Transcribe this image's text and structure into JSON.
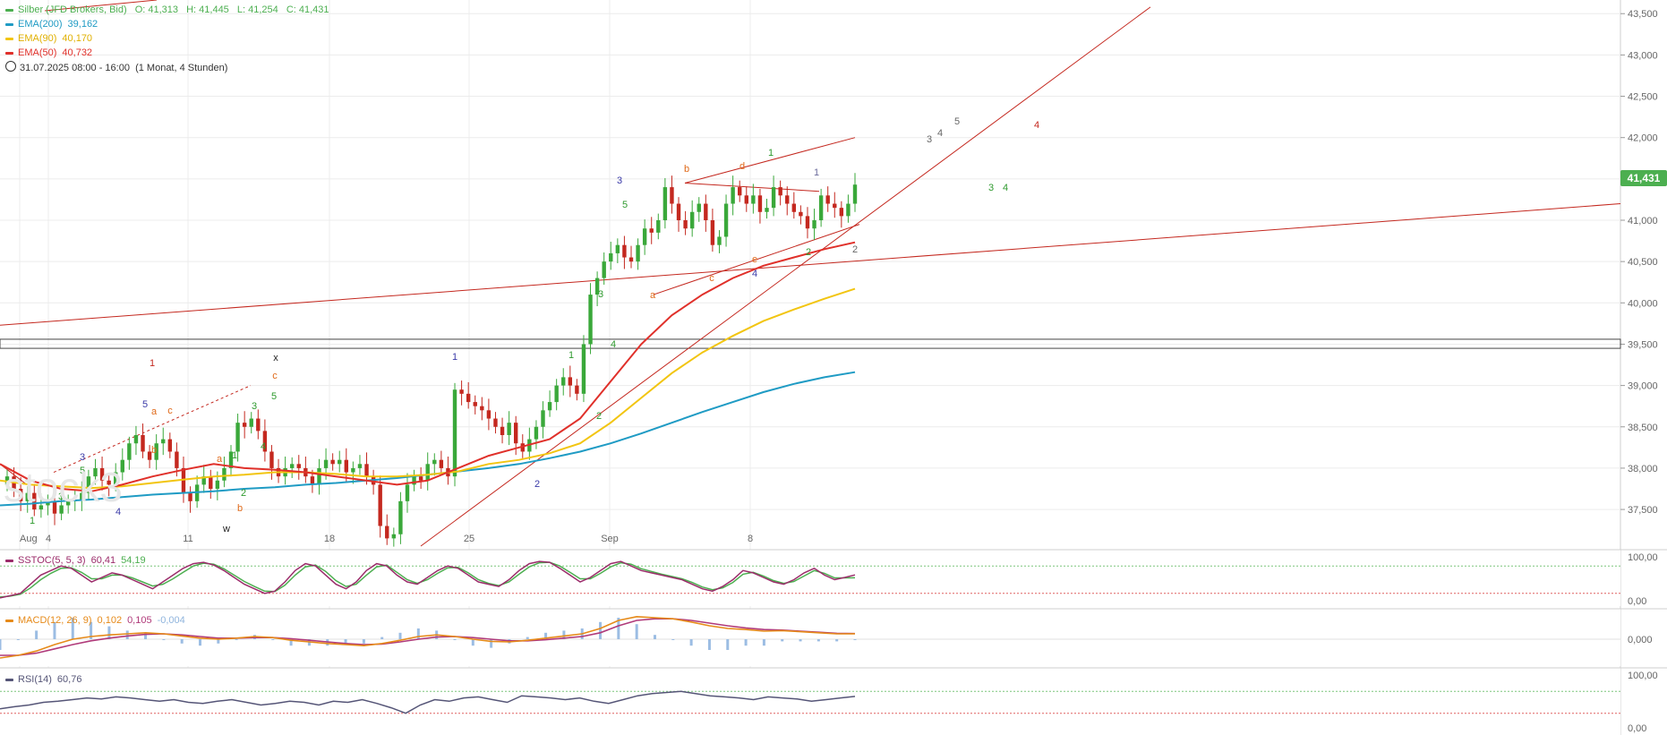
{
  "chart_data": [
    {
      "type": "candlestick",
      "instrument_label": "Silber (JFD Brokers, Bid)",
      "ohlc": {
        "O": "41,313",
        "H": "41,445",
        "L": "41,254",
        "C": "41,431"
      },
      "last_price": "41,431",
      "period_label": "31.07.2025 08:00 - 16:00",
      "range_label": "(1 Monat, 4 Stunden)",
      "y_ticks": [
        "43,500",
        "43,000",
        "42,500",
        "42,000",
        "41,500",
        "41,000",
        "40,500",
        "40,000",
        "39,500",
        "39,000",
        "38,500",
        "38,000",
        "37,500"
      ],
      "x_ticks": [
        "Aug",
        "4",
        "11",
        "18",
        "25",
        "Sep",
        "8"
      ],
      "ylim": [
        37.1,
        43.6
      ],
      "grid": true,
      "series": [
        {
          "name": "EMA(200)",
          "value": "39,162",
          "color": "#1f9bc4"
        },
        {
          "name": "EMA(90)",
          "value": "40,170",
          "color": "#f2c511"
        },
        {
          "name": "EMA(50)",
          "value": "40,732",
          "color": "#e0302a"
        }
      ],
      "candles_close": [
        37.9,
        37.75,
        37.6,
        37.7,
        37.5,
        37.55,
        37.6,
        37.45,
        37.55,
        37.6,
        37.62,
        37.7,
        37.9,
        38.0,
        37.85,
        37.8,
        37.95,
        38.1,
        38.3,
        38.4,
        38.2,
        38.1,
        38.3,
        38.35,
        38.2,
        38.0,
        37.7,
        37.6,
        37.8,
        37.9,
        37.75,
        37.85,
        38.0,
        38.2,
        38.55,
        38.5,
        38.6,
        38.45,
        38.2,
        38.0,
        37.9,
        38.0,
        38.05,
        38.0,
        37.9,
        37.8,
        38.0,
        38.1,
        38.05,
        38.1,
        37.95,
        38.0,
        38.05,
        37.9,
        37.8,
        37.3,
        37.15,
        37.2,
        37.6,
        37.8,
        37.9,
        37.85,
        38.05,
        38.1,
        38.0,
        37.9,
        38.95,
        38.9,
        38.8,
        38.75,
        38.7,
        38.6,
        38.5,
        38.4,
        38.55,
        38.3,
        38.2,
        38.35,
        38.5,
        38.7,
        38.8,
        39.0,
        39.1,
        39.0,
        38.9,
        39.5,
        40.1,
        40.3,
        40.5,
        40.6,
        40.7,
        40.55,
        40.5,
        40.7,
        40.9,
        40.85,
        41.0,
        41.4,
        41.2,
        41.0,
        40.9,
        41.1,
        41.2,
        41.0,
        40.7,
        40.8,
        41.2,
        41.4,
        41.3,
        41.2,
        41.3,
        41.1,
        41.15,
        41.4,
        41.3,
        41.2,
        41.1,
        41.05,
        40.9,
        41.0,
        41.3,
        41.2,
        41.15,
        41.05,
        41.2,
        41.431
      ],
      "ema200": [
        37.55,
        37.57,
        37.6,
        37.62,
        37.65,
        37.68,
        37.7,
        37.72,
        37.75,
        37.77,
        37.8,
        37.82,
        37.85,
        37.88,
        37.92,
        37.96,
        38.0,
        38.05,
        38.12,
        38.2,
        38.3,
        38.42,
        38.55,
        38.68,
        38.8,
        38.92,
        39.02,
        39.1,
        39.162
      ],
      "ema90": [
        37.85,
        37.8,
        37.78,
        37.76,
        37.78,
        37.82,
        37.86,
        37.9,
        37.92,
        37.95,
        37.95,
        37.93,
        37.9,
        37.9,
        37.92,
        37.96,
        38.05,
        38.1,
        38.18,
        38.3,
        38.55,
        38.85,
        39.15,
        39.4,
        39.6,
        39.78,
        39.92,
        40.05,
        40.17
      ],
      "ema50": [
        38.05,
        37.85,
        37.75,
        37.72,
        37.8,
        37.9,
        37.98,
        38.05,
        38.0,
        37.98,
        37.95,
        37.9,
        37.85,
        37.8,
        37.85,
        38.0,
        38.15,
        38.25,
        38.35,
        38.6,
        39.05,
        39.5,
        39.85,
        40.1,
        40.3,
        40.45,
        40.55,
        40.65,
        40.732
      ],
      "wave_labels": [
        {
          "t": "1",
          "color": "#2e9a2e"
        },
        {
          "t": "3",
          "color": "#2e9a2e"
        },
        {
          "t": "5",
          "color": "#2e9a2e"
        },
        {
          "t": "3",
          "color": "#3a3aa8"
        },
        {
          "t": "4",
          "color": "#3a3aa8"
        },
        {
          "t": "5",
          "color": "#3a3aa8"
        },
        {
          "t": "a",
          "color": "#e06a1a"
        },
        {
          "t": "b",
          "color": "#e06a1a"
        },
        {
          "t": "1",
          "color": "#c4281f"
        },
        {
          "t": "c",
          "color": "#e06a1a"
        },
        {
          "t": "a",
          "color": "#e06a1a"
        },
        {
          "t": "b",
          "color": "#e06a1a"
        },
        {
          "t": "1",
          "color": "#2e9a2e"
        },
        {
          "t": "2",
          "color": "#2e9a2e"
        },
        {
          "t": "3",
          "color": "#2e9a2e"
        },
        {
          "t": "4",
          "color": "#2e9a2e"
        },
        {
          "t": "5",
          "color": "#2e9a2e"
        },
        {
          "t": "c",
          "color": "#e06a1a"
        },
        {
          "t": "w",
          "color": "#222222"
        },
        {
          "t": "x",
          "color": "#222222"
        },
        {
          "t": "1",
          "color": "#3a3aa8"
        },
        {
          "t": "2",
          "color": "#3a3aa8"
        },
        {
          "t": "1",
          "color": "#2e9a2e"
        },
        {
          "t": "2",
          "color": "#2e9a2e"
        },
        {
          "t": "3",
          "color": "#2e9a2e"
        },
        {
          "t": "4",
          "color": "#2e9a2e"
        },
        {
          "t": "3",
          "color": "#3a3aa8"
        },
        {
          "t": "5",
          "color": "#2e9a2e"
        },
        {
          "t": "a",
          "color": "#e06a1a"
        },
        {
          "t": "b",
          "color": "#e06a1a"
        },
        {
          "t": "c",
          "color": "#e06a1a"
        },
        {
          "t": "d",
          "color": "#e06a1a"
        },
        {
          "t": "e",
          "color": "#e06a1a"
        },
        {
          "t": "4",
          "color": "#3a3aa8"
        },
        {
          "t": "1",
          "color": "#2e9a2e"
        },
        {
          "t": "1",
          "color": "#6a6a9a"
        },
        {
          "t": "2",
          "color": "#2e9a2e"
        },
        {
          "t": "2",
          "color": "#666666"
        },
        {
          "t": "3",
          "color": "#666666"
        },
        {
          "t": "4",
          "color": "#666666"
        },
        {
          "t": "5",
          "color": "#666666"
        },
        {
          "t": "3",
          "color": "#2e9a2e"
        },
        {
          "t": "4",
          "color": "#2e9a2e"
        },
        {
          "t": "4",
          "color": "#c4281f"
        }
      ]
    },
    {
      "type": "line",
      "title": "SSTOC(5, 5, 3)",
      "values_text": [
        "60,41",
        "54,19"
      ],
      "y_ticks": [
        "100,00",
        "0,00"
      ],
      "ylim": [
        0,
        100
      ],
      "series": [
        {
          "name": "%K",
          "color": "#9b2c6a",
          "values": [
            10,
            15,
            20,
            40,
            60,
            70,
            80,
            75,
            60,
            45,
            55,
            65,
            60,
            50,
            40,
            30,
            45,
            60,
            75,
            85,
            88,
            82,
            70,
            55,
            40,
            30,
            20,
            25,
            45,
            70,
            85,
            80,
            60,
            40,
            30,
            45,
            70,
            85,
            80,
            60,
            45,
            40,
            55,
            70,
            80,
            75,
            60,
            45,
            40,
            35,
            50,
            70,
            85,
            90,
            88,
            75,
            60,
            45,
            55,
            70,
            85,
            90,
            80,
            70,
            65,
            60,
            55,
            50,
            40,
            30,
            25,
            35,
            50,
            70,
            65,
            55,
            45,
            40,
            50,
            65,
            75,
            60,
            50,
            55,
            60.41
          ]
        },
        {
          "name": "%D",
          "color": "#4caf50",
          "values": [
            12,
            14,
            18,
            32,
            50,
            64,
            75,
            76,
            66,
            52,
            52,
            60,
            60,
            54,
            45,
            36,
            40,
            52,
            66,
            80,
            86,
            84,
            74,
            60,
            46,
            35,
            25,
            24,
            38,
            60,
            78,
            82,
            68,
            48,
            35,
            40,
            60,
            78,
            82,
            66,
            50,
            42,
            50,
            64,
            76,
            77,
            65,
            50,
            42,
            37,
            45,
            62,
            78,
            87,
            88,
            80,
            66,
            52,
            52,
            64,
            78,
            87,
            84,
            74,
            68,
            62,
            57,
            52,
            44,
            34,
            28,
            32,
            44,
            62,
            66,
            58,
            48,
            42,
            46,
            58,
            70,
            64,
            54,
            54,
            54.19
          ]
        }
      ]
    },
    {
      "type": "line",
      "title": "MACD(12, 26, 9)",
      "values_text": [
        "0,102",
        "0,105",
        "-0,004"
      ],
      "y_ticks": [
        "0,000"
      ],
      "ylim": [
        -0.5,
        0.5
      ],
      "series": [
        {
          "name": "MACD",
          "color": "#e68a19",
          "values": [
            -0.35,
            -0.3,
            -0.22,
            -0.1,
            0.0,
            0.05,
            0.08,
            0.1,
            0.12,
            0.1,
            0.06,
            0.02,
            0.0,
            0.02,
            0.05,
            0.03,
            -0.02,
            -0.05,
            -0.08,
            -0.1,
            -0.12,
            -0.08,
            -0.02,
            0.05,
            0.08,
            0.05,
            0.0,
            -0.04,
            -0.05,
            -0.02,
            0.02,
            0.06,
            0.1,
            0.2,
            0.35,
            0.42,
            0.4,
            0.38,
            0.32,
            0.25,
            0.2,
            0.18,
            0.15,
            0.16,
            0.14,
            0.12,
            0.1,
            0.102
          ]
        },
        {
          "name": "Signal",
          "color": "#b03a7a",
          "values": [
            -0.3,
            -0.3,
            -0.26,
            -0.18,
            -0.1,
            -0.03,
            0.02,
            0.06,
            0.09,
            0.1,
            0.08,
            0.05,
            0.02,
            0.02,
            0.03,
            0.03,
            0.01,
            -0.02,
            -0.05,
            -0.08,
            -0.1,
            -0.09,
            -0.05,
            0.0,
            0.04,
            0.05,
            0.03,
            0.0,
            -0.03,
            -0.03,
            -0.01,
            0.02,
            0.05,
            0.12,
            0.25,
            0.35,
            0.38,
            0.38,
            0.35,
            0.3,
            0.25,
            0.21,
            0.18,
            0.17,
            0.15,
            0.13,
            0.11,
            0.105
          ]
        }
      ]
    },
    {
      "type": "line",
      "title": "RSI(14)",
      "values_text": [
        "60,76"
      ],
      "y_ticks": [
        "100,00",
        "0,00"
      ],
      "ylim": [
        0,
        100
      ],
      "series": [
        {
          "name": "RSI(14)",
          "color": "#555577",
          "values": [
            38,
            42,
            45,
            50,
            52,
            55,
            58,
            56,
            60,
            58,
            55,
            52,
            55,
            50,
            48,
            52,
            55,
            50,
            45,
            48,
            52,
            50,
            45,
            52,
            50,
            55,
            48,
            40,
            30,
            45,
            55,
            52,
            58,
            60,
            55,
            50,
            62,
            60,
            58,
            55,
            58,
            52,
            48,
            55,
            62,
            66,
            68,
            70,
            66,
            62,
            60,
            58,
            55,
            60,
            58,
            56,
            52,
            55,
            58,
            60.76
          ]
        }
      ]
    }
  ]
}
